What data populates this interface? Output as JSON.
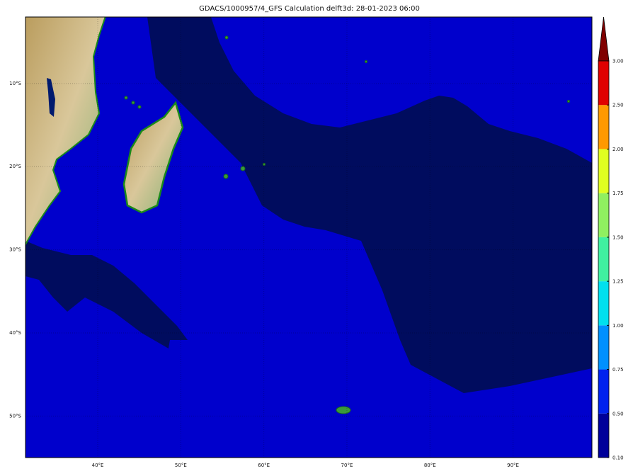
{
  "title": "GDACS/1000957/4_GFS Calculation delft3d: 28-01-2023 06:00",
  "map": {
    "lon_range": [
      31.3,
      99.5
    ],
    "lat_range": [
      -2,
      -55
    ],
    "lon_ticks": [
      {
        "value": 40,
        "label": "40°E"
      },
      {
        "value": 50,
        "label": "50°E"
      },
      {
        "value": 60,
        "label": "60°E"
      },
      {
        "value": 70,
        "label": "70°E"
      },
      {
        "value": 80,
        "label": "80°E"
      },
      {
        "value": 90,
        "label": "90°E"
      }
    ],
    "lat_ticks": [
      {
        "value": -10,
        "label": "10°S"
      },
      {
        "value": -20,
        "label": "20°S"
      },
      {
        "value": -30,
        "label": "30°S"
      },
      {
        "value": -40,
        "label": "40°S"
      },
      {
        "value": -50,
        "label": "50°S"
      }
    ],
    "colors": {
      "ocean_low": "#0000cc",
      "ocean_lowest": "#000c5e",
      "land": "#c8b27a",
      "coast": "#1a8a1a"
    }
  },
  "colorbar": {
    "extend": "max",
    "ticks": [
      "0.10",
      "0.50",
      "0.75",
      "1.00",
      "1.25",
      "1.50",
      "1.75",
      "2.00",
      "2.50",
      "3.00"
    ],
    "colors": [
      "#00009a",
      "#0022ee",
      "#0090ff",
      "#00e0ee",
      "#40f0a0",
      "#90f060",
      "#e0ff20",
      "#ff9900",
      "#e00000"
    ],
    "over_color": "#800000"
  }
}
